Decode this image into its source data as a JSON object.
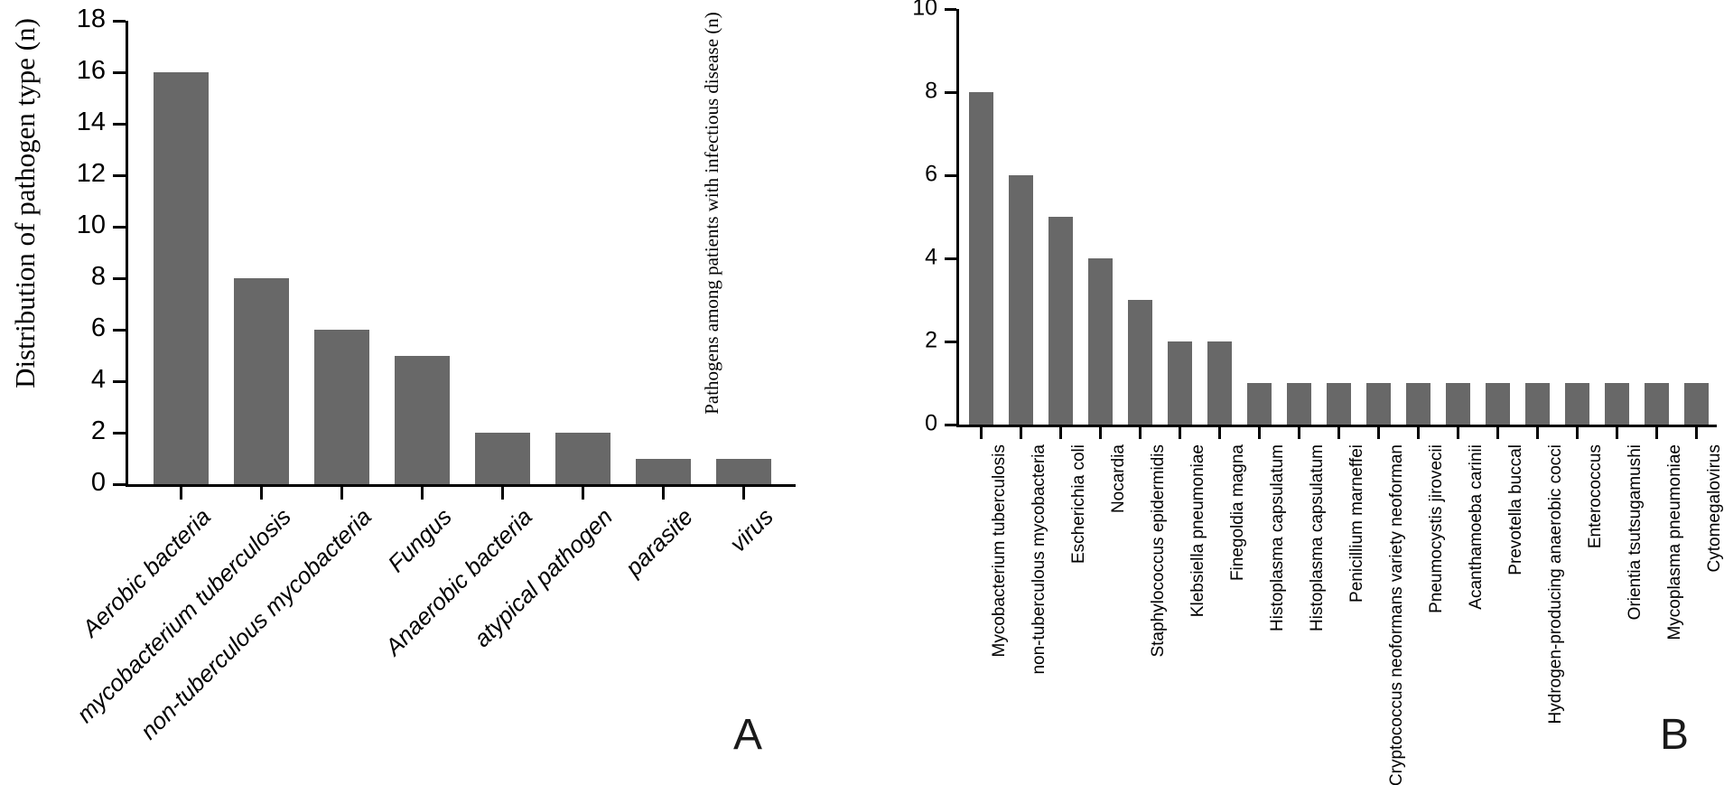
{
  "figure": {
    "background_color": "#ffffff",
    "text_color": "#000000",
    "panels": [
      {
        "letter": "A"
      },
      {
        "letter": "B"
      }
    ]
  },
  "chart_data": [
    {
      "type": "bar",
      "panel_letter": "A",
      "title": "",
      "xlabel": "",
      "ylabel": "Distribution of pathogen type (n)",
      "ylim": [
        0,
        18
      ],
      "yticks": [
        0,
        2,
        4,
        6,
        8,
        10,
        12,
        14,
        16,
        18
      ],
      "grid": false,
      "legend": false,
      "bar_color": "#686868",
      "axis_color": "#000000",
      "category_label_rotation_deg": -45,
      "category_label_italic": true,
      "categories": [
        "Aerobic bacteria",
        "mycobacterium tuberculosis",
        "non-tuberculous mycobacteria",
        "Fungus",
        "Anaerobic bacteria",
        "atypical pathogen",
        "parasite",
        "virus"
      ],
      "values": [
        16,
        8,
        6,
        5,
        2,
        2,
        1,
        1
      ]
    },
    {
      "type": "bar",
      "panel_letter": "B",
      "title": "",
      "xlabel": "",
      "ylabel": "Pathogens among patients with infectious disease (n)",
      "ylim": [
        0,
        10
      ],
      "yticks": [
        0,
        2,
        4,
        6,
        8,
        10
      ],
      "grid": false,
      "legend": false,
      "bar_color": "#686868",
      "axis_color": "#000000",
      "category_label_rotation_deg": -90,
      "category_label_italic": false,
      "categories": [
        "Mycobacterium tuberculosis",
        "non-tuberculous mycobacteria",
        "Escherichia coli",
        "Nocardia",
        "Staphylococcus epidermidis",
        "Klebsiella pneumoniae",
        "Finegoldia magna",
        "Histoplasma capsulatum",
        "Histoplasma capsulatum",
        "Penicillium marneffei",
        "Cryptococcus neoformans variety neoforman",
        "Pneumocystis jirovecii",
        "Acanthamoeba carinii",
        "Prevotella buccal",
        "Hydrogen-producing anaerobic cocci",
        "Enterococcus",
        "Orientia tsutsugamushi",
        "Mycoplasma pneumoniae",
        "Cytomegalovirus"
      ],
      "values": [
        8,
        6,
        5,
        4,
        3,
        2,
        2,
        1,
        1,
        1,
        1,
        1,
        1,
        1,
        1,
        1,
        1,
        1,
        1
      ]
    }
  ]
}
